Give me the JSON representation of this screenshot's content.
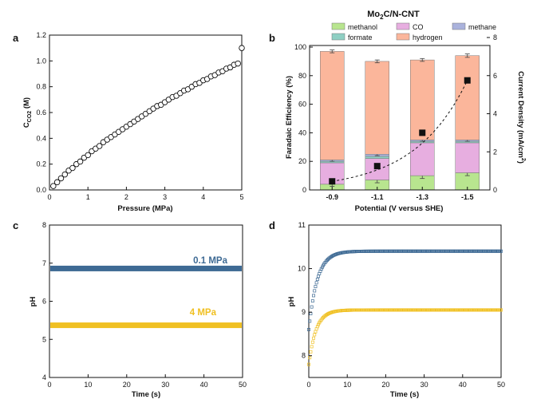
{
  "chart_data": [
    {
      "panel": "a",
      "type": "scatter",
      "xlabel": "Pressure (MPa)",
      "ylabel_main": "C",
      "ylabel_sub": "CO2",
      "ylabel_unit": " (M)",
      "xlim": [
        0,
        5
      ],
      "ylim": [
        0,
        1.2
      ],
      "xticks": [
        "0",
        "1",
        "2",
        "3",
        "4",
        "5"
      ],
      "yticks": [
        "0.0",
        "0.2",
        "0.4",
        "0.6",
        "0.8",
        "1.0",
        "1.2"
      ],
      "marker": "open-circle",
      "points": [
        [
          0.1,
          0.03
        ],
        [
          0.2,
          0.06
        ],
        [
          0.3,
          0.09
        ],
        [
          0.4,
          0.12
        ],
        [
          0.5,
          0.15
        ],
        [
          0.6,
          0.17
        ],
        [
          0.7,
          0.2
        ],
        [
          0.8,
          0.22
        ],
        [
          0.9,
          0.25
        ],
        [
          1.0,
          0.27
        ],
        [
          1.1,
          0.3
        ],
        [
          1.2,
          0.32
        ],
        [
          1.3,
          0.34
        ],
        [
          1.4,
          0.37
        ],
        [
          1.5,
          0.39
        ],
        [
          1.6,
          0.41
        ],
        [
          1.7,
          0.43
        ],
        [
          1.8,
          0.45
        ],
        [
          1.9,
          0.47
        ],
        [
          2.0,
          0.49
        ],
        [
          2.1,
          0.51
        ],
        [
          2.2,
          0.53
        ],
        [
          2.3,
          0.55
        ],
        [
          2.4,
          0.57
        ],
        [
          2.5,
          0.59
        ],
        [
          2.6,
          0.61
        ],
        [
          2.7,
          0.63
        ],
        [
          2.8,
          0.65
        ],
        [
          2.9,
          0.66
        ],
        [
          3.0,
          0.68
        ],
        [
          3.1,
          0.7
        ],
        [
          3.2,
          0.72
        ],
        [
          3.3,
          0.73
        ],
        [
          3.4,
          0.75
        ],
        [
          3.5,
          0.77
        ],
        [
          3.6,
          0.78
        ],
        [
          3.7,
          0.8
        ],
        [
          3.8,
          0.82
        ],
        [
          3.9,
          0.83
        ],
        [
          4.0,
          0.85
        ],
        [
          4.1,
          0.86
        ],
        [
          4.2,
          0.88
        ],
        [
          4.3,
          0.89
        ],
        [
          4.4,
          0.91
        ],
        [
          4.5,
          0.92
        ],
        [
          4.6,
          0.94
        ],
        [
          4.7,
          0.95
        ],
        [
          4.8,
          0.97
        ],
        [
          4.9,
          0.98
        ],
        [
          5.0,
          1.1
        ]
      ]
    },
    {
      "panel": "b",
      "type": "bar",
      "title": "Mo2C/N-CNT",
      "title_main": "Mo",
      "title_sub": "2",
      "title_rest": "C/N-CNT",
      "xlabel": "Potential (V versus SHE)",
      "ylabel": "Faradaic Efficiency (%)",
      "y2label": "Current Density (mA/cm",
      "y2label_sup": "2",
      "y2label_end": ")",
      "categories": [
        "-0.9",
        "-1.1",
        "-1.3",
        "-1.5"
      ],
      "ylim": [
        0,
        100
      ],
      "y2lim": [
        0,
        8
      ],
      "yticks": [
        "0",
        "20",
        "40",
        "60",
        "80",
        "100"
      ],
      "y2ticks": [
        "0",
        "2",
        "4",
        "6",
        "8"
      ],
      "series": [
        {
          "name": "methanol",
          "color": "#b8e58f",
          "values": [
            4,
            7,
            10,
            12
          ],
          "err": [
            1.5,
            2,
            2,
            2
          ]
        },
        {
          "name": "CO",
          "color": "#e7aee0",
          "values": [
            15,
            15,
            23,
            21
          ],
          "err": [
            0,
            0,
            0,
            0
          ]
        },
        {
          "name": "formate",
          "color": "#8fcfc3",
          "values": [
            1,
            1.5,
            1,
            1
          ],
          "err": [
            0,
            0,
            0,
            0
          ]
        },
        {
          "name": "methane",
          "color": "#aab2dc",
          "values": [
            1,
            1.5,
            1,
            1
          ],
          "err": [
            1,
            1,
            1,
            1
          ]
        },
        {
          "name": "hydrogen",
          "color": "#fbb69b",
          "values": [
            76,
            65,
            56,
            59
          ],
          "err": [
            1,
            1,
            1,
            1.2
          ]
        }
      ],
      "current_density": {
        "values": [
          0.45,
          1.25,
          3.0,
          5.75
        ],
        "marker": "filled-square",
        "fit": "dashed"
      },
      "legend": [
        "methanol",
        "CO",
        "methane",
        "formate",
        "hydrogen"
      ]
    },
    {
      "panel": "c",
      "type": "line",
      "xlabel": "Time (s)",
      "ylabel": "pH",
      "xlim": [
        0,
        50
      ],
      "ylim": [
        4,
        8
      ],
      "xticks": [
        "0",
        "10",
        "20",
        "30",
        "40",
        "50"
      ],
      "yticks": [
        "4",
        "5",
        "6",
        "7",
        "8"
      ],
      "series": [
        {
          "name": "0.1 MPa",
          "color": "#3e6a94",
          "value": 6.86
        },
        {
          "name": "4 MPa",
          "color": "#f0c022",
          "value": 5.37
        }
      ]
    },
    {
      "panel": "d",
      "type": "scatter",
      "xlabel": "Time (s)",
      "ylabel": "pH",
      "xlim": [
        0,
        50
      ],
      "ylim": [
        7.5,
        11
      ],
      "xticks": [
        "0",
        "10",
        "20",
        "30",
        "40",
        "50"
      ],
      "yticks": [
        "8",
        "9",
        "10",
        "11"
      ],
      "series": [
        {
          "color": "#3e6a94",
          "start": 8.6,
          "end": 10.4,
          "tau": 2.2
        },
        {
          "color": "#f0c022",
          "start": 7.8,
          "end": 9.05,
          "tau": 1.9
        }
      ]
    }
  ]
}
